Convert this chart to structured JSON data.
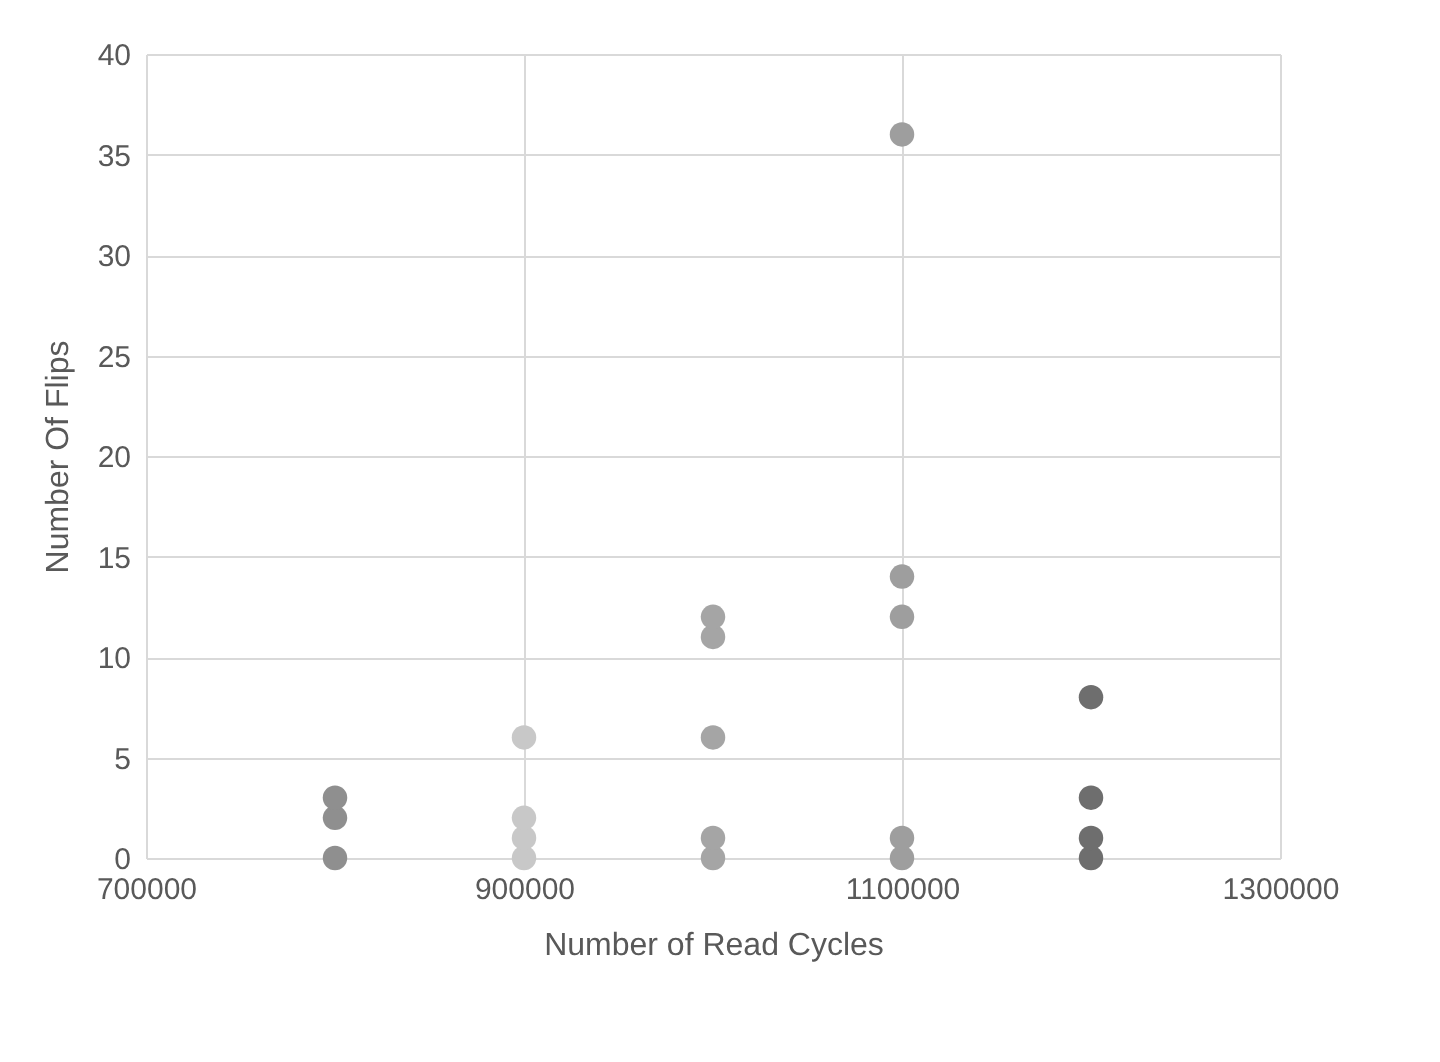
{
  "chart_data": {
    "type": "scatter",
    "xlabel": "Number of Read Cycles",
    "ylabel": "Number Of Flips",
    "xlim": [
      700000,
      1300000
    ],
    "xticks": [
      700000,
      900000,
      1100000,
      1300000
    ],
    "ylim": [
      0,
      40
    ],
    "yticks": [
      0,
      5,
      10,
      15,
      20,
      25,
      30,
      35,
      40
    ],
    "grid": true,
    "marker": "circle",
    "legend": false,
    "series": [
      {
        "color": "#8f8f8f",
        "x": [
          800000,
          800000,
          800000
        ],
        "values": [
          0,
          2,
          3
        ]
      },
      {
        "color": "#c8c8c8",
        "x": [
          900000,
          900000,
          900000,
          900000
        ],
        "values": [
          0,
          1,
          2,
          6
        ]
      },
      {
        "color": "#a5a5a5",
        "x": [
          1000000,
          1000000,
          1000000,
          1000000,
          1000000
        ],
        "values": [
          0,
          1,
          6,
          11,
          12
        ]
      },
      {
        "color": "#9e9e9e",
        "x": [
          1100000,
          1100000,
          1100000,
          1100000,
          1100000
        ],
        "values": [
          0,
          1,
          12,
          14,
          36
        ]
      },
      {
        "color": "#6e6e6e",
        "x": [
          1200000,
          1200000,
          1200000,
          1200000
        ],
        "values": [
          0,
          1,
          3,
          8
        ]
      }
    ]
  }
}
